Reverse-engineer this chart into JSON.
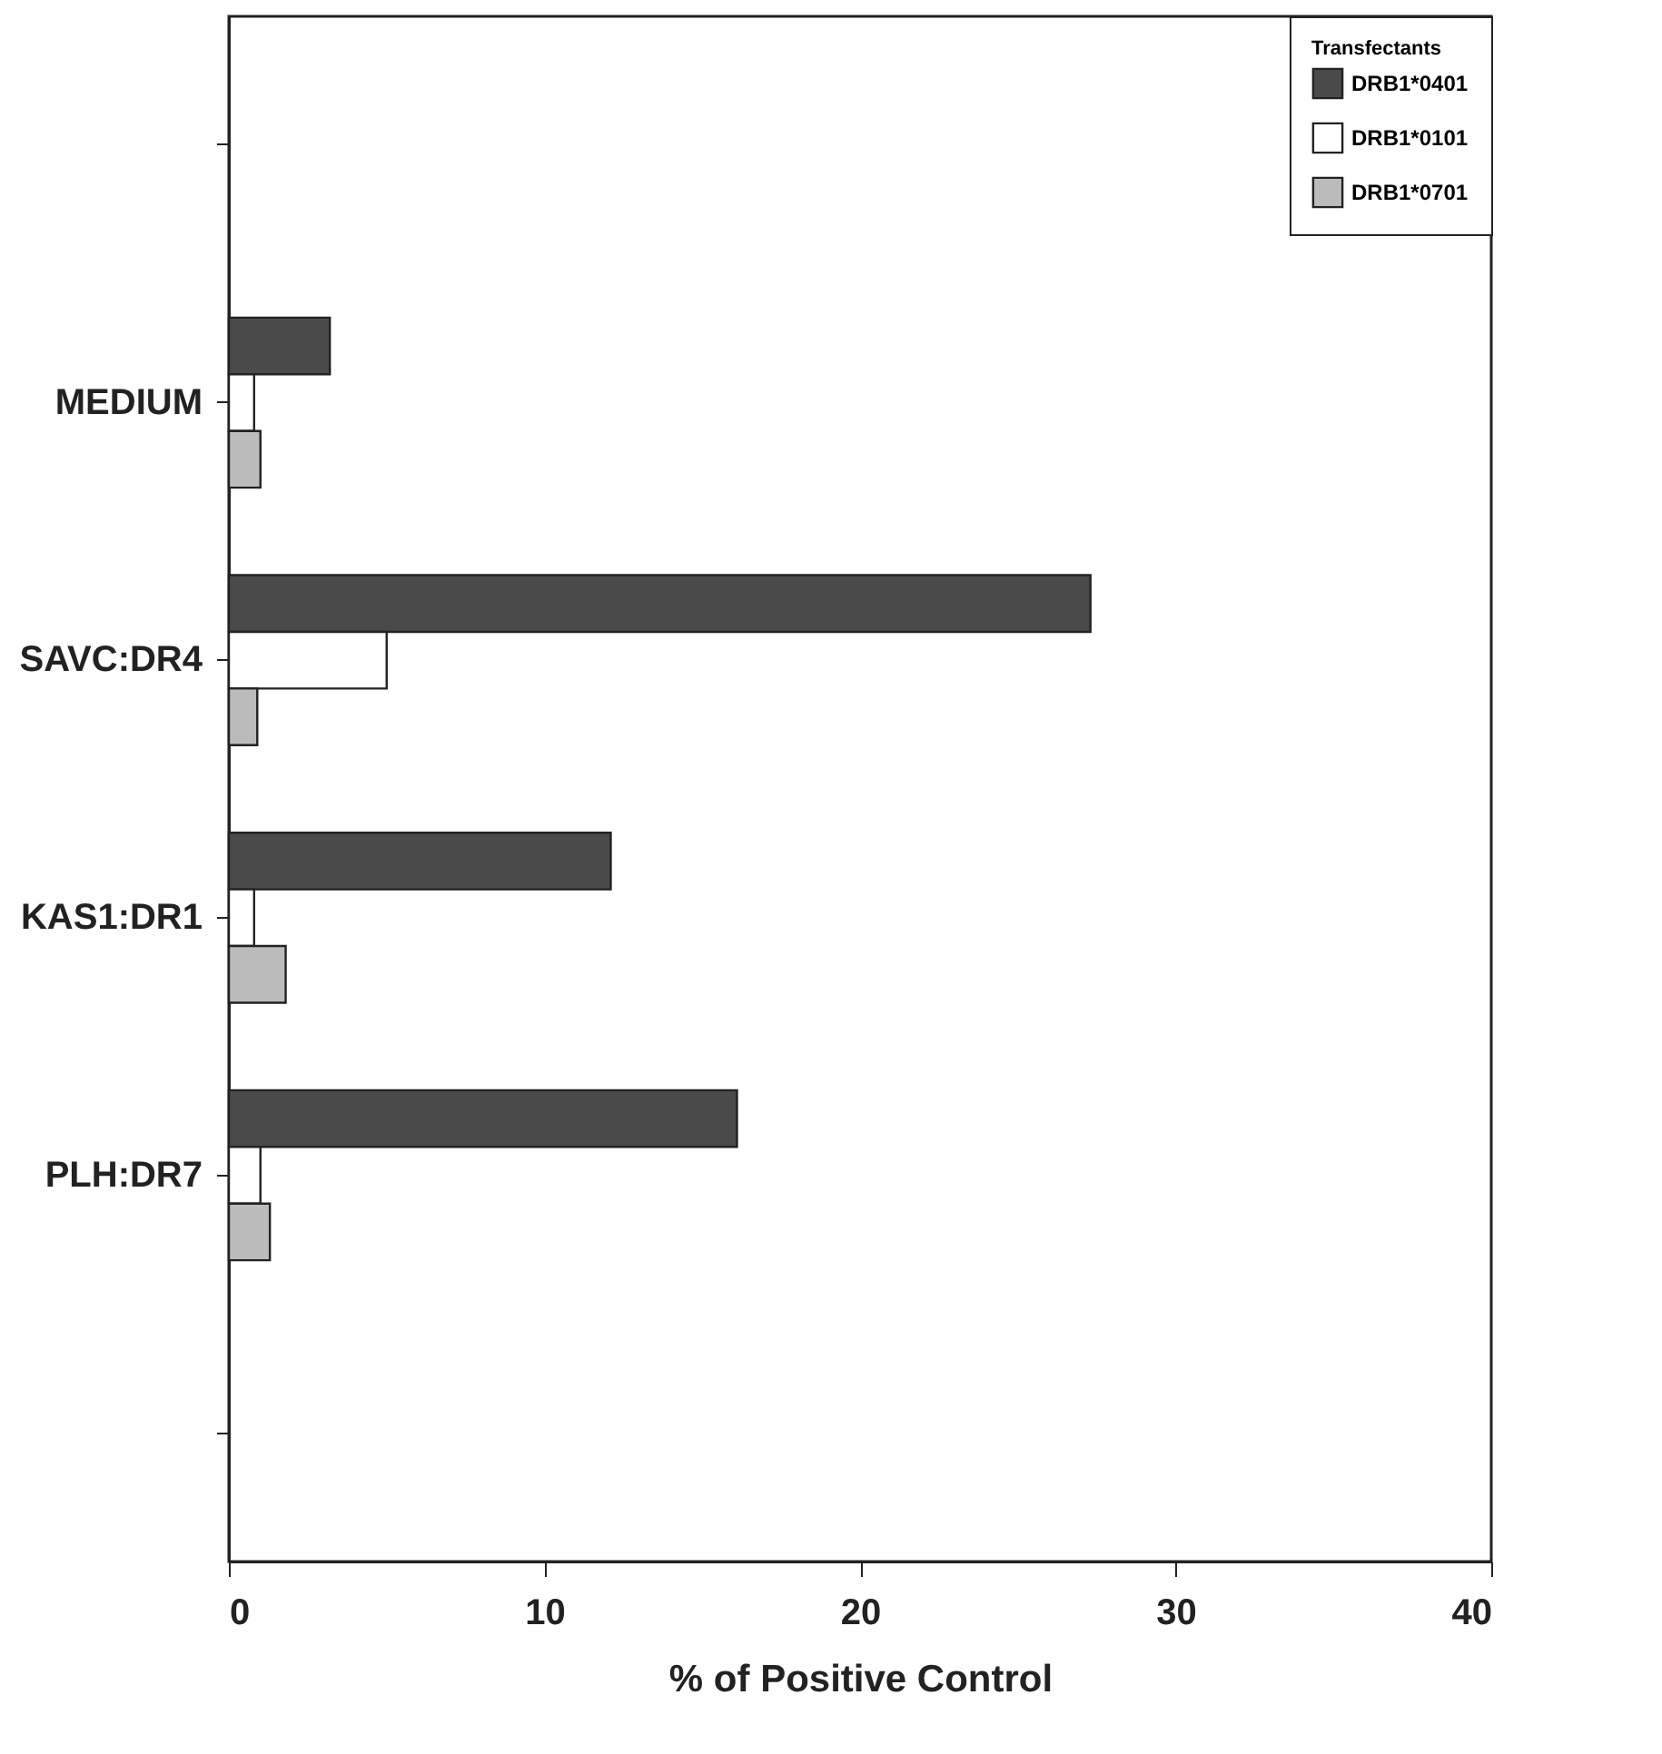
{
  "chart_data": {
    "type": "bar",
    "orientation": "horizontal",
    "xlabel": "% of Positive Control",
    "legend_title": "Transfectants",
    "legend": "top right",
    "grid": false,
    "categories": [
      null,
      "MEDIUM",
      "SAVC:DR4",
      "KAS1:DR1",
      "PLH:DR7",
      null
    ],
    "xlim": [
      0,
      40
    ],
    "xticks": [
      0,
      10,
      20,
      30,
      40
    ],
    "series": [
      {
        "name": "DRB1*0401",
        "color": "#4a4a4a",
        "values": [
          null,
          3.2,
          27.3,
          12.1,
          16.1,
          null
        ]
      },
      {
        "name": "DRB1*0101",
        "color": "#ffffff",
        "values": [
          null,
          0.8,
          5.0,
          0.8,
          1.0,
          null
        ]
      },
      {
        "name": "DRB1*0701",
        "color": "#bbbbbb",
        "values": [
          null,
          1.0,
          0.9,
          1.8,
          1.3,
          null
        ]
      }
    ]
  }
}
